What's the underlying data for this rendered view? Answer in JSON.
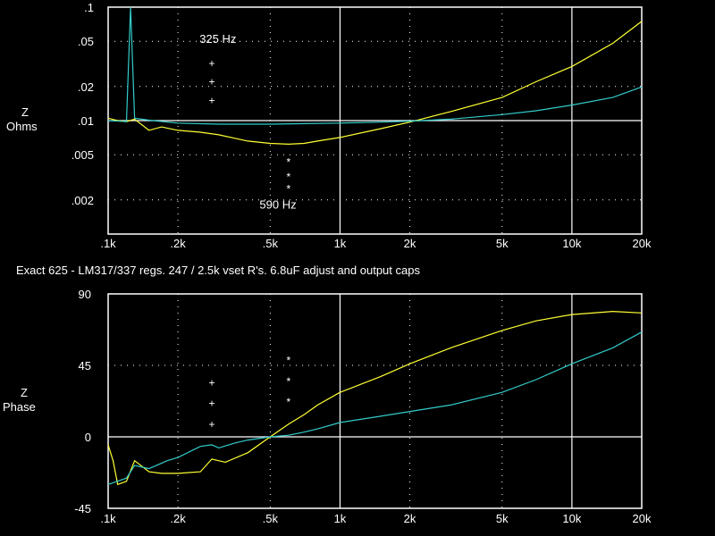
{
  "caption": "Exact 625 - LM317/337 regs.  247 / 2.5k vset R's. 6.8uF adjust and output caps",
  "colors": {
    "background": "#000000",
    "grid": "#ffffff",
    "series_yellow": "#ffff33",
    "series_cyan": "#33cccc",
    "text": "#ffffff"
  },
  "chart_data": [
    {
      "type": "line",
      "ylabel_lines": [
        "Z",
        "Ohms"
      ],
      "y_scale": "log",
      "x_scale": "log",
      "xlim": [
        0.1,
        20
      ],
      "ylim": [
        0.001,
        0.1
      ],
      "x_ticks": [
        0.1,
        0.2,
        0.5,
        1,
        2,
        5,
        10,
        20
      ],
      "x_tick_labels": [
        ".1k",
        ".2k",
        ".5k",
        "1k",
        "2k",
        "5k",
        "10k",
        "20k"
      ],
      "y_ticks": [
        0.1,
        0.05,
        0.02,
        0.01,
        0.005,
        0.002
      ],
      "y_tick_labels": [
        ".1",
        ".05",
        ".02",
        ".01",
        ".005",
        ".002"
      ],
      "annotations": [
        {
          "text": "325 Hz",
          "x": 0.325,
          "y": 0.052
        },
        {
          "text": "590 Hz",
          "x": 0.59,
          "y": 0.0018
        }
      ],
      "markers": [
        {
          "symbol": "+",
          "x": 0.28,
          "y": 0.032
        },
        {
          "symbol": "+",
          "x": 0.28,
          "y": 0.022
        },
        {
          "symbol": "+",
          "x": 0.28,
          "y": 0.015
        },
        {
          "symbol": "*",
          "x": 0.6,
          "y": 0.0043
        },
        {
          "symbol": "*",
          "x": 0.6,
          "y": 0.0032
        },
        {
          "symbol": "*",
          "x": 0.6,
          "y": 0.0025
        }
      ],
      "series": [
        {
          "color": "yellow",
          "x": [
            0.1,
            0.11,
            0.12,
            0.13,
            0.15,
            0.17,
            0.2,
            0.25,
            0.3,
            0.35,
            0.4,
            0.5,
            0.6,
            0.7,
            0.8,
            1,
            1.5,
            2,
            3,
            5,
            7,
            10,
            15,
            20
          ],
          "y": [
            0.0105,
            0.01,
            0.0098,
            0.0103,
            0.0082,
            0.0088,
            0.0082,
            0.0079,
            0.0075,
            0.007,
            0.0066,
            0.0063,
            0.0062,
            0.0063,
            0.0066,
            0.0071,
            0.0085,
            0.0097,
            0.012,
            0.016,
            0.022,
            0.03,
            0.048,
            0.075
          ]
        },
        {
          "color": "cyan",
          "x": [
            0.1,
            0.12,
            0.125,
            0.13,
            0.15,
            0.2,
            0.3,
            0.5,
            0.7,
            1,
            1.5,
            2,
            3,
            5,
            7,
            10,
            15,
            20
          ],
          "y": [
            0.01,
            0.0098,
            0.1,
            0.0105,
            0.0101,
            0.0095,
            0.0093,
            0.0093,
            0.0094,
            0.0095,
            0.0097,
            0.0099,
            0.0103,
            0.0113,
            0.0122,
            0.0137,
            0.016,
            0.0198
          ]
        }
      ]
    },
    {
      "type": "line",
      "ylabel_lines": [
        "Z",
        "Phase"
      ],
      "y_scale": "linear",
      "x_scale": "log",
      "xlim": [
        0.1,
        20
      ],
      "ylim": [
        -45,
        90
      ],
      "x_ticks": [
        0.1,
        0.2,
        0.5,
        1,
        2,
        5,
        10,
        20
      ],
      "x_tick_labels": [
        ".1k",
        ".2k",
        ".5k",
        "1k",
        "2k",
        "5k",
        "10k",
        "20k"
      ],
      "y_ticks": [
        90,
        45,
        0,
        -45
      ],
      "y_tick_labels": [
        "90",
        "45",
        "0",
        "-45"
      ],
      "markers": [
        {
          "symbol": "+",
          "x": 0.28,
          "y": 34
        },
        {
          "symbol": "+",
          "x": 0.28,
          "y": 21
        },
        {
          "symbol": "+",
          "x": 0.28,
          "y": 8
        },
        {
          "symbol": "*",
          "x": 0.6,
          "y": 48
        },
        {
          "symbol": "*",
          "x": 0.6,
          "y": 35
        },
        {
          "symbol": "*",
          "x": 0.6,
          "y": 22
        }
      ],
      "series": [
        {
          "color": "yellow",
          "x": [
            0.1,
            0.105,
            0.11,
            0.12,
            0.13,
            0.15,
            0.17,
            0.2,
            0.25,
            0.28,
            0.32,
            0.4,
            0.5,
            0.6,
            0.7,
            0.8,
            1,
            1.5,
            2,
            3,
            5,
            7,
            10,
            15,
            20
          ],
          "y": [
            -5,
            -15,
            -30,
            -28,
            -15,
            -22,
            -23,
            -23,
            -22,
            -14,
            -16,
            -10,
            0,
            8,
            14,
            20,
            28,
            38,
            46,
            56,
            67,
            73,
            77,
            79,
            78
          ]
        },
        {
          "color": "cyan",
          "x": [
            0.1,
            0.12,
            0.13,
            0.15,
            0.18,
            0.2,
            0.25,
            0.28,
            0.3,
            0.35,
            0.4,
            0.5,
            0.6,
            0.7,
            0.8,
            1,
            1.5,
            2,
            3,
            5,
            7,
            10,
            15,
            20
          ],
          "y": [
            -30,
            -26,
            -18,
            -20,
            -15,
            -13,
            -6,
            -5,
            -7,
            -4,
            -2,
            0,
            1,
            3,
            5,
            9,
            13,
            16,
            20,
            28,
            36,
            46,
            56,
            66
          ]
        }
      ]
    }
  ]
}
